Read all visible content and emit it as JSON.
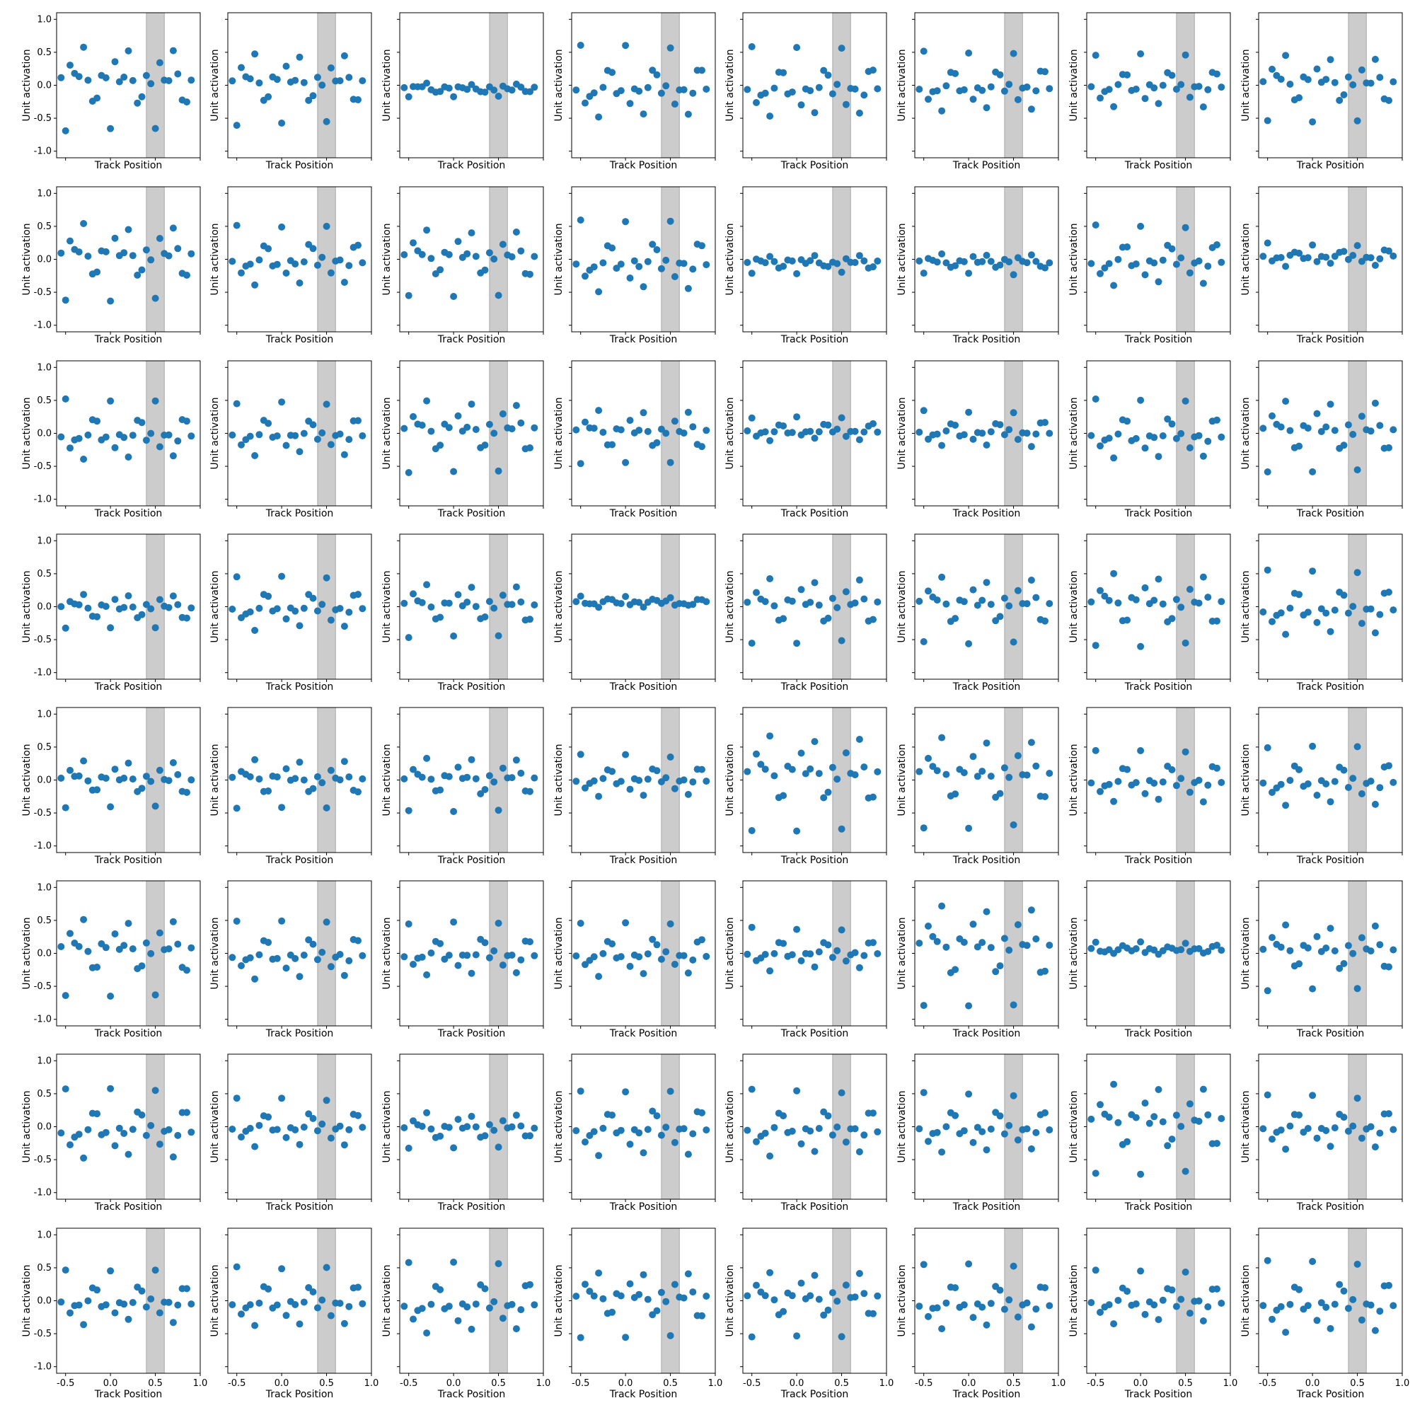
{
  "chart_data": {
    "type": "scatter",
    "layout": "grid of 8 rows x 8 columns, shared axes",
    "xlabel": "Track Position",
    "ylabel": "Unit activation",
    "xlim": [
      -0.6,
      1.0
    ],
    "ylim": [
      -1.1,
      1.1
    ],
    "x_ticks": [
      -0.5,
      0.0,
      0.5,
      1.0
    ],
    "x_tick_labels": [
      "-0.5",
      "0.0",
      "0.5",
      "1.0"
    ],
    "y_ticks": [
      -1.0,
      -0.5,
      0.0,
      0.5,
      1.0
    ],
    "y_tick_labels": [
      "-1.0",
      "-0.5",
      "0.0",
      "0.5",
      "1.0"
    ],
    "highlight_band": {
      "x_range": [
        0.4,
        0.6
      ],
      "color": "#cccccc"
    },
    "marker_color": "#1f77b4",
    "grid": false,
    "x_positions": [
      -0.55,
      -0.5,
      -0.45,
      -0.4,
      -0.35,
      -0.3,
      -0.25,
      -0.2,
      -0.15,
      -0.1,
      -0.05,
      0.0,
      0.05,
      0.1,
      0.15,
      0.2,
      0.25,
      0.3,
      0.35,
      0.4,
      0.45,
      0.5,
      0.55,
      0.6,
      0.65,
      0.7,
      0.75,
      0.8,
      0.85,
      0.9
    ],
    "panel_count": 64,
    "panels_amplitude_sign": [
      [
        0.7,
        0.6,
        0.12,
        -0.6,
        -0.6,
        -0.5,
        -0.45,
        0.55
      ],
      [
        0.65,
        -0.5,
        0.55,
        -0.6,
        0.15,
        0.17,
        -0.5,
        -0.18
      ],
      [
        -0.5,
        -0.45,
        0.6,
        0.45,
        -0.2,
        -0.3,
        -0.5,
        0.6
      ],
      [
        0.3,
        -0.45,
        0.45,
        -0.08,
        0.55,
        0.55,
        0.6,
        -0.55
      ],
      [
        0.4,
        0.4,
        0.45,
        -0.35,
        0.8,
        0.75,
        -0.45,
        -0.5
      ],
      [
        0.65,
        -0.5,
        -0.45,
        -0.45,
        -0.35,
        0.85,
        -0.1,
        0.55
      ],
      [
        -0.6,
        -0.4,
        0.3,
        -0.55,
        -0.55,
        -0.5,
        0.75,
        -0.45
      ],
      [
        -0.45,
        -0.5,
        -0.6,
        0.55,
        0.55,
        -0.55,
        -0.45,
        -0.6
      ]
    ]
  }
}
